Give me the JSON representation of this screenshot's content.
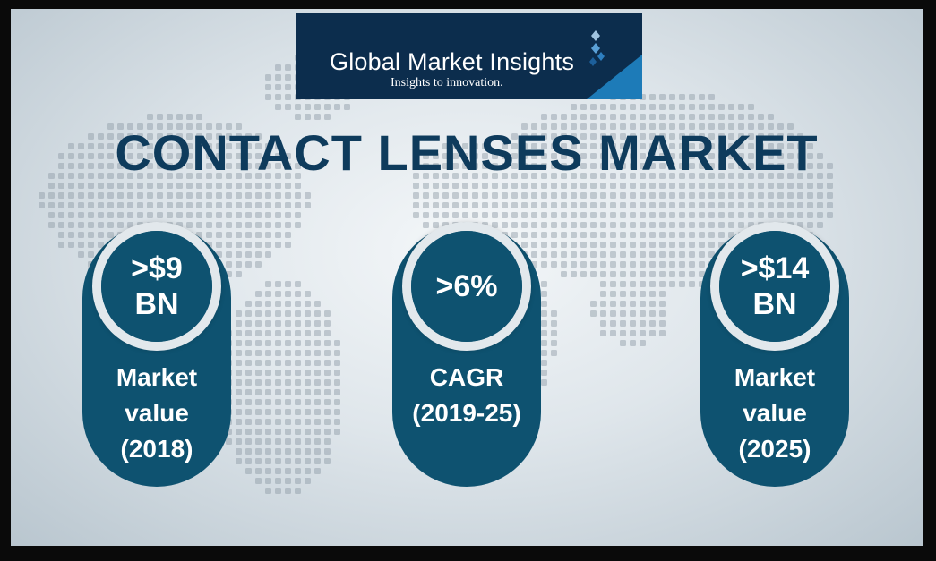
{
  "logo": {
    "name": "Global Market Insights",
    "tagline": "Insights to innovation."
  },
  "title": "CONTACT LENSES MARKET",
  "stats": [
    {
      "value": ">$9\nBN",
      "label": "Market\nvalue\n(2018)"
    },
    {
      "value": ">6%",
      "label": "CAGR\n(2019-25)"
    },
    {
      "value": ">$14\nBN",
      "label": "Market\nvalue\n(2025)"
    }
  ],
  "colors": {
    "primary": "#0e5270",
    "title": "#0e3b5c",
    "logo_bg": "#0c2d4d",
    "logo_accent": "#1d7bb8",
    "ring": "#e2e8ec"
  }
}
